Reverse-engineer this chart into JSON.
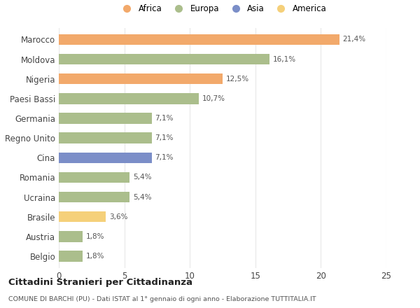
{
  "countries": [
    "Marocco",
    "Moldova",
    "Nigeria",
    "Paesi Bassi",
    "Germania",
    "Regno Unito",
    "Cina",
    "Romania",
    "Ucraina",
    "Brasile",
    "Austria",
    "Belgio"
  ],
  "values": [
    21.4,
    16.1,
    12.5,
    10.7,
    7.1,
    7.1,
    7.1,
    5.4,
    5.4,
    3.6,
    1.8,
    1.8
  ],
  "labels": [
    "21,4%",
    "16,1%",
    "12,5%",
    "10,7%",
    "7,1%",
    "7,1%",
    "7,1%",
    "5,4%",
    "5,4%",
    "3,6%",
    "1,8%",
    "1,8%"
  ],
  "colors": [
    "#F2A96B",
    "#ABBE8C",
    "#F2A96B",
    "#ABBE8C",
    "#ABBE8C",
    "#ABBE8C",
    "#7B8EC8",
    "#ABBE8C",
    "#ABBE8C",
    "#F5D07A",
    "#ABBE8C",
    "#ABBE8C"
  ],
  "legend": [
    {
      "label": "Africa",
      "color": "#F2A96B"
    },
    {
      "label": "Europa",
      "color": "#ABBE8C"
    },
    {
      "label": "Asia",
      "color": "#7B8EC8"
    },
    {
      "label": "America",
      "color": "#F5D07A"
    }
  ],
  "xlim": [
    0,
    25
  ],
  "xticks": [
    0,
    5,
    10,
    15,
    20,
    25
  ],
  "title": "Cittadini Stranieri per Cittadinanza",
  "subtitle": "COMUNE DI BARCHI (PU) - Dati ISTAT al 1° gennaio di ogni anno - Elaborazione TUTTITALIA.IT",
  "bg_color": "#FFFFFF",
  "grid_color": "#E8E8E8",
  "bar_height": 0.55
}
